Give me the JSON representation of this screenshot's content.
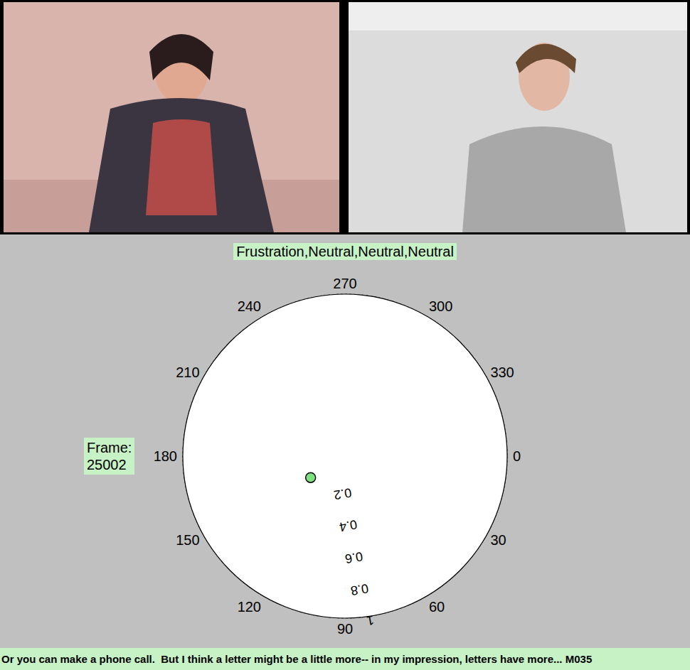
{
  "chart_data": {
    "type": "polar_scatter",
    "title": "Frustration,Neutral,Neutral,Neutral",
    "frame_label": "Frame:",
    "frame": 25002,
    "caption": "Or you can make a phone call.  But I think a letter might be a little more-- in my impression, letters have more... M035",
    "theta": [
      148
    ],
    "r": [
      0.25
    ],
    "color": "#7ee07e",
    "marker": "circle",
    "thetalim": [
      0,
      360
    ],
    "thetaticks": [
      0,
      30,
      60,
      90,
      120,
      150,
      180,
      210,
      240,
      270,
      300,
      330
    ],
    "rlim": [
      0,
      1
    ],
    "rticks": [
      0.2,
      0.4,
      0.6,
      0.8,
      1
    ],
    "grid": true
  }
}
